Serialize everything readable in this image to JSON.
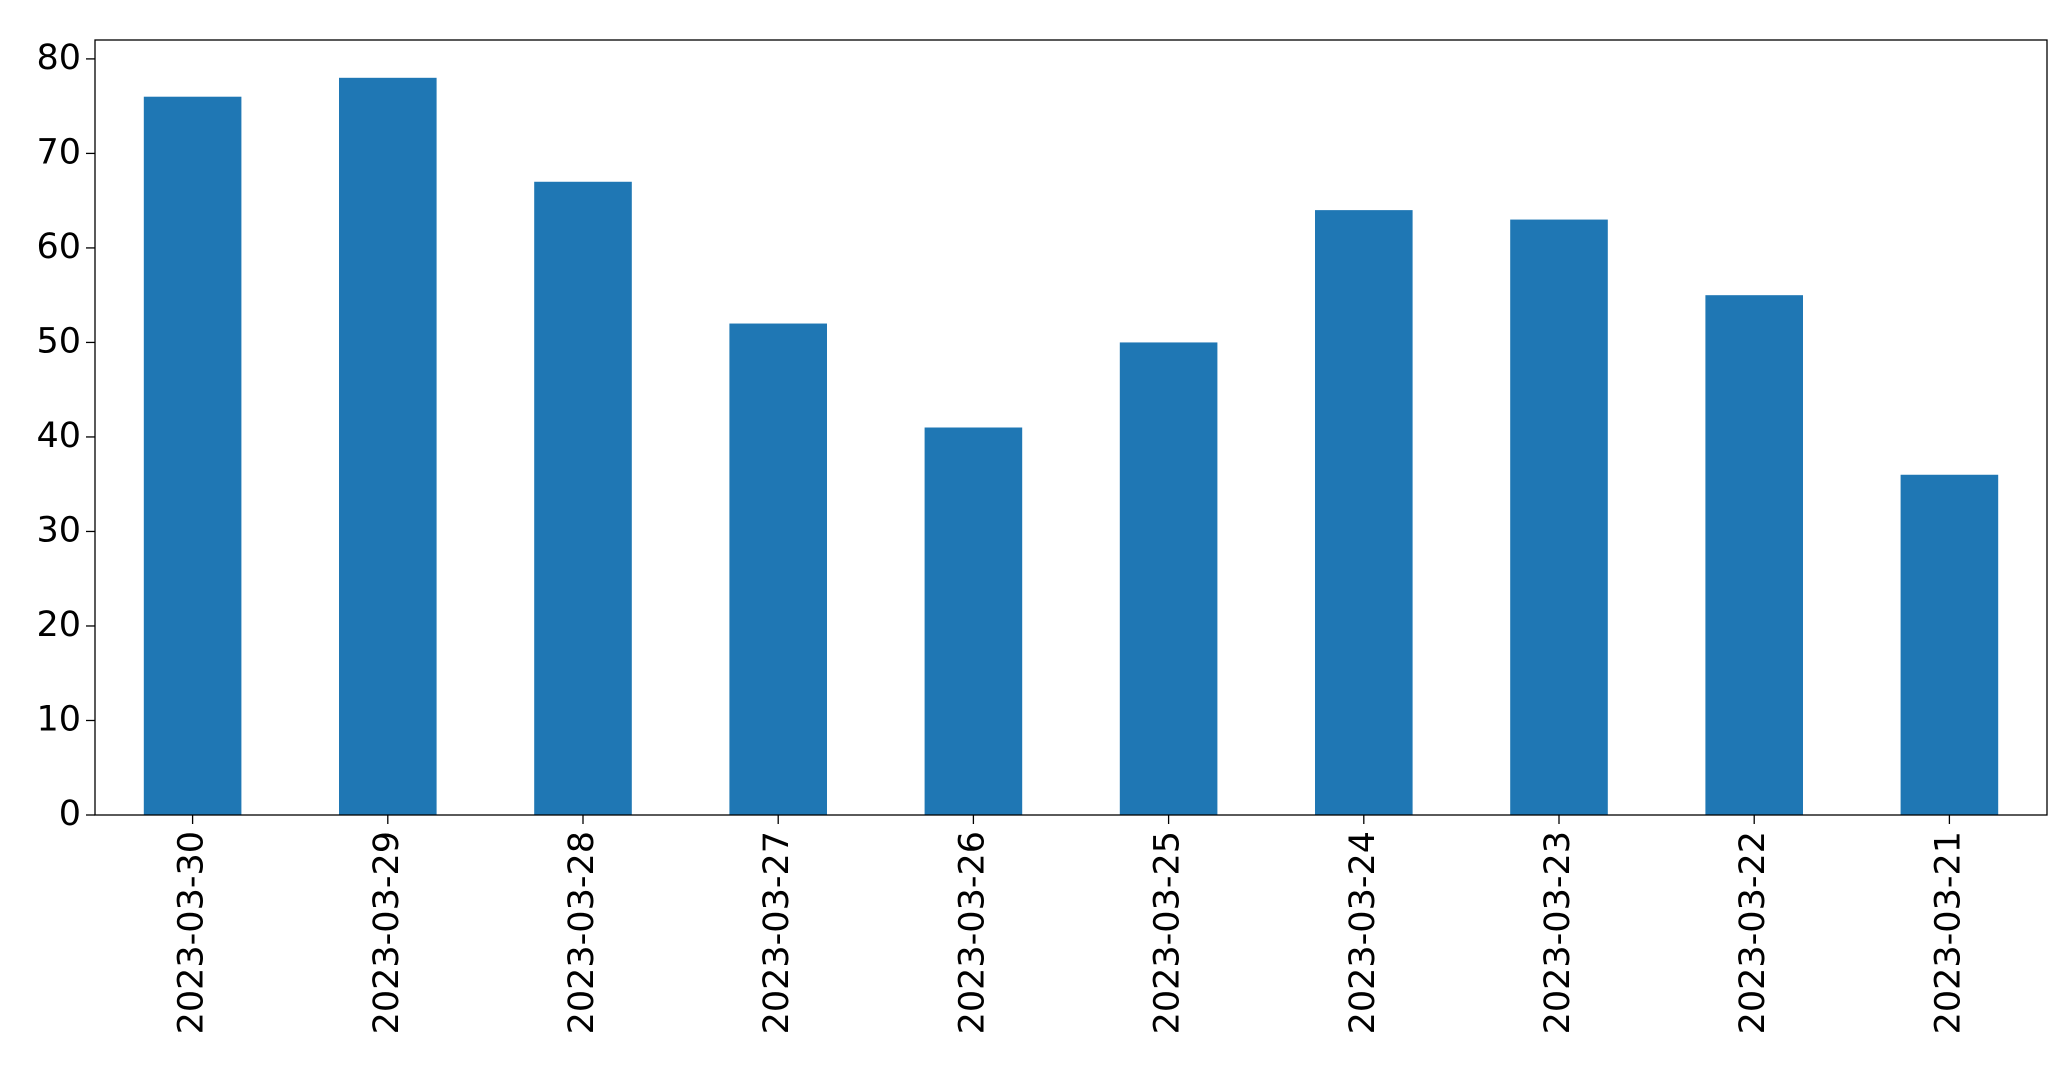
{
  "chart_data": {
    "type": "bar",
    "categories": [
      "2023-03-30",
      "2023-03-29",
      "2023-03-28",
      "2023-03-27",
      "2023-03-26",
      "2023-03-25",
      "2023-03-24",
      "2023-03-23",
      "2023-03-22",
      "2023-03-21"
    ],
    "values": [
      76,
      78,
      67,
      52,
      41,
      50,
      64,
      63,
      55,
      36
    ],
    "color": "#1f77b4",
    "ylim": [
      0,
      82
    ],
    "yticks": [
      0,
      10,
      20,
      30,
      40,
      50,
      60,
      70,
      80
    ],
    "grid": false
  }
}
